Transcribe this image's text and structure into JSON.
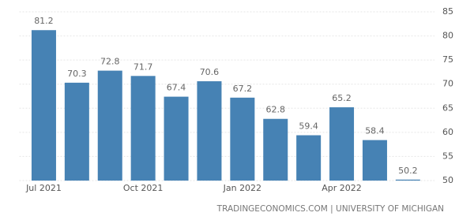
{
  "chart_data": {
    "type": "bar",
    "categories": [
      "Jul 2021",
      null,
      null,
      "Oct 2021",
      null,
      null,
      "Jan 2022",
      null,
      null,
      "Apr 2022",
      null,
      null
    ],
    "values": [
      81.2,
      70.3,
      72.8,
      71.7,
      67.4,
      70.6,
      67.2,
      62.8,
      59.4,
      65.2,
      58.4,
      50.2
    ],
    "color": "#4682b4",
    "ylim": [
      50,
      85
    ],
    "yticks": [
      50,
      55,
      60,
      65,
      70,
      75,
      80,
      85
    ],
    "grid": true,
    "source": "TRADINGECONOMICS.COM | UNIVERSITY OF MICHIGAN"
  }
}
